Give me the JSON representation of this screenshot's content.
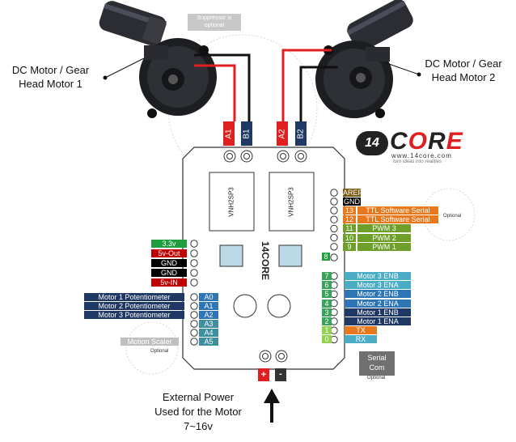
{
  "motors": [
    {
      "label_line1": "DC Motor / Gear",
      "label_line2": "Head Motor 1"
    },
    {
      "label_line1": "DC Motor / Gear",
      "label_line2": "Head Motor 2"
    }
  ],
  "suppressor_note": {
    "line1": "Suppressor is",
    "line2": "optional"
  },
  "terminals": [
    "A1",
    "B1",
    "A2",
    "B2"
  ],
  "chips": [
    "VNH2SP3",
    "VNH2SP3"
  ],
  "logo": {
    "text": "14CORE",
    "url": "www.14core.com",
    "tagline": "turn ideas into realities"
  },
  "power_pins": [
    {
      "label": "3.3v",
      "color": "#1f9e3e"
    },
    {
      "label": "5v-Out",
      "color": "#c00000"
    },
    {
      "label": "GND",
      "color": "#000000"
    },
    {
      "label": "GND",
      "color": "#000000"
    },
    {
      "label": "5v-IN",
      "color": "#c00000"
    }
  ],
  "analog_pins": [
    {
      "pin": "A0",
      "label": "Motor 1 Potentiometer"
    },
    {
      "pin": "A1",
      "label": "Motor 2 Potentiometer"
    },
    {
      "pin": "A2",
      "label": "Motor 3 Potentiometer"
    },
    {
      "pin": "A3",
      "label": ""
    },
    {
      "pin": "A4",
      "label": ""
    },
    {
      "pin": "A5",
      "label": "Motion Scaler"
    }
  ],
  "motion_scaler_optional": "Optional",
  "top_right_pins": [
    {
      "pin": "",
      "label": "AREF",
      "color": "#7a5a10"
    },
    {
      "pin": "",
      "label": "GND",
      "color": "#000000"
    },
    {
      "pin": "13",
      "label": "TTL Software Serial",
      "color": "#e8781e"
    },
    {
      "pin": "12",
      "label": "TTL Software Serial",
      "color": "#e8781e"
    },
    {
      "pin": "11",
      "label": "PWM 3",
      "color": "#6e9f2a"
    },
    {
      "pin": "10",
      "label": "PWM 2",
      "color": "#6e9f2a"
    },
    {
      "pin": "9",
      "label": "PWM 1",
      "color": "#6e9f2a"
    }
  ],
  "pin8": "8",
  "ttl_optional": "Optional",
  "bottom_right_pins": [
    {
      "pin": "7",
      "label": "Motor 3 ENB",
      "color": "#4bacc6"
    },
    {
      "pin": "6",
      "label": "Motor 3 ENA",
      "color": "#4bacc6"
    },
    {
      "pin": "5",
      "label": "Motor 2 ENB",
      "color": "#2e75b6"
    },
    {
      "pin": "4",
      "label": "Motor 2 ENA",
      "color": "#2e75b6"
    },
    {
      "pin": "3",
      "label": "Motor 1 ENB",
      "color": "#1f3864"
    },
    {
      "pin": "2",
      "label": "Motor 1 ENA",
      "color": "#1f3864"
    },
    {
      "pin": "1",
      "label": "TX",
      "color": "#e8781e"
    },
    {
      "pin": "0",
      "label": "RX",
      "color": "#4bacc6"
    }
  ],
  "serial_com": {
    "line1": "Serial",
    "line2": "Com",
    "optional": "Optional"
  },
  "power_symbols": {
    "plus": "+",
    "minus": "-"
  },
  "external_power": {
    "line1": "External Power",
    "line2": "Used for the Motor",
    "line3": "7~16v"
  },
  "colors": {
    "red_wire": "#e02020",
    "black_wire": "#111111",
    "terminal_red": "#e02020",
    "terminal_blue": "#1f3864",
    "board_fill": "#ffffff",
    "board_stroke": "#333333"
  }
}
